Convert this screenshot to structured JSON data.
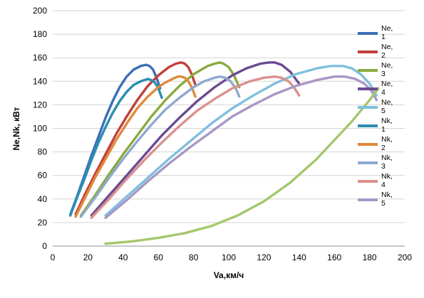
{
  "chart_data": {
    "type": "line",
    "title": "",
    "xlabel": "Va,км/ч",
    "ylabel": "Ne,Nk, кВт",
    "xlim": [
      0,
      200
    ],
    "ylim": [
      0,
      200
    ],
    "x_ticks": [
      "0",
      "20",
      "40",
      "60",
      "80",
      "100",
      "120",
      "140",
      "160",
      "180",
      "200"
    ],
    "y_ticks": [
      "0",
      "20",
      "40",
      "60",
      "80",
      "100",
      "120",
      "140",
      "160",
      "180",
      "200"
    ],
    "grid": "horizontal",
    "legend_position": "right",
    "series": [
      {
        "name": "Ne,\n1",
        "color": "#3b6fb6",
        "x": [
          10,
          14,
          18,
          22,
          26,
          30,
          34,
          38,
          42,
          46,
          50,
          53,
          55,
          57,
          59,
          61
        ],
        "y": [
          27,
          43,
          60,
          77,
          93,
          109,
          123,
          135,
          144,
          150,
          153,
          154,
          153,
          150,
          143,
          134
        ]
      },
      {
        "name": "Ne,\n2",
        "color": "#c0403a",
        "x": [
          13,
          18,
          24,
          30,
          36,
          42,
          48,
          54,
          60,
          66,
          70,
          73,
          75,
          77,
          79,
          81
        ],
        "y": [
          27,
          43,
          61,
          78,
          95,
          110,
          124,
          136,
          145,
          152,
          155,
          156,
          155,
          152,
          146,
          137
        ]
      },
      {
        "name": "Ne,\n3",
        "color": "#8aaa3e",
        "x": [
          16,
          24,
          32,
          40,
          48,
          56,
          64,
          72,
          80,
          88,
          92,
          95,
          97,
          100,
          103,
          106
        ],
        "y": [
          26,
          43,
          61,
          78,
          94,
          110,
          124,
          136,
          146,
          153,
          155,
          156,
          155,
          152,
          145,
          135
        ]
      },
      {
        "name": "Ne,\n4",
        "color": "#6b4a91",
        "x": [
          22,
          32,
          42,
          52,
          62,
          72,
          82,
          92,
          102,
          110,
          118,
          123,
          126,
          130,
          135,
          140
        ],
        "y": [
          26,
          43,
          60,
          77,
          94,
          109,
          123,
          135,
          145,
          151,
          155,
          156,
          156,
          154,
          148,
          138
        ]
      },
      {
        "name": "Ne,\n5",
        "color": "#80bfdd",
        "x": [
          30,
          42,
          54,
          66,
          78,
          90,
          102,
          114,
          126,
          138,
          150,
          158,
          165,
          170,
          175,
          180,
          184
        ],
        "y": [
          26,
          42,
          58,
          74,
          89,
          104,
          117,
          128,
          138,
          146,
          151,
          153,
          153,
          151,
          146,
          138,
          128
        ]
      },
      {
        "name": "Nk,\n1",
        "color": "#2b8fb0",
        "x": [
          10,
          14,
          18,
          22,
          26,
          30,
          34,
          38,
          42,
          46,
          50,
          54,
          56,
          58,
          60,
          62
        ],
        "y": [
          26,
          42,
          57,
          73,
          88,
          101,
          113,
          123,
          131,
          137,
          140,
          142,
          141,
          139,
          134,
          126
        ]
      },
      {
        "name": "Nk,\n2",
        "color": "#e08a3c",
        "x": [
          13,
          18,
          24,
          30,
          36,
          42,
          48,
          54,
          60,
          64,
          68,
          71,
          73,
          75,
          77,
          79,
          81
        ],
        "y": [
          25,
          40,
          58,
          74,
          90,
          104,
          117,
          127,
          135,
          139,
          142,
          144,
          144,
          143,
          140,
          135,
          127
        ]
      },
      {
        "name": "Nk,\n3",
        "color": "#8ea8cf",
        "x": [
          16,
          24,
          32,
          40,
          48,
          56,
          64,
          72,
          80,
          86,
          92,
          95,
          98,
          101,
          104,
          106
        ],
        "y": [
          25,
          41,
          58,
          74,
          89,
          103,
          116,
          126,
          135,
          140,
          143,
          144,
          143,
          140,
          134,
          127
        ]
      },
      {
        "name": "Nk,\n4",
        "color": "#da918e",
        "x": [
          22,
          32,
          42,
          52,
          62,
          72,
          82,
          92,
          102,
          112,
          120,
          126,
          130,
          134,
          137,
          140
        ],
        "y": [
          24,
          40,
          57,
          73,
          88,
          102,
          115,
          125,
          134,
          140,
          143,
          144,
          143,
          140,
          135,
          128
        ]
      },
      {
        "name": "Nk,\n5",
        "color": "#a897c5",
        "x": [
          30,
          42,
          54,
          66,
          78,
          90,
          102,
          114,
          126,
          138,
          150,
          160,
          166,
          172,
          177,
          181,
          184
        ],
        "y": [
          24,
          39,
          55,
          70,
          84,
          97,
          110,
          120,
          129,
          136,
          141,
          144,
          144,
          142,
          138,
          132,
          124
        ]
      },
      {
        "name": "",
        "color": "#a4c76b",
        "x": [
          30,
          45,
          60,
          75,
          90,
          105,
          120,
          135,
          150,
          160,
          170,
          180,
          185
        ],
        "y": [
          2,
          4,
          7,
          11,
          17,
          26,
          38,
          54,
          74,
          90,
          106,
          124,
          134
        ]
      }
    ]
  }
}
